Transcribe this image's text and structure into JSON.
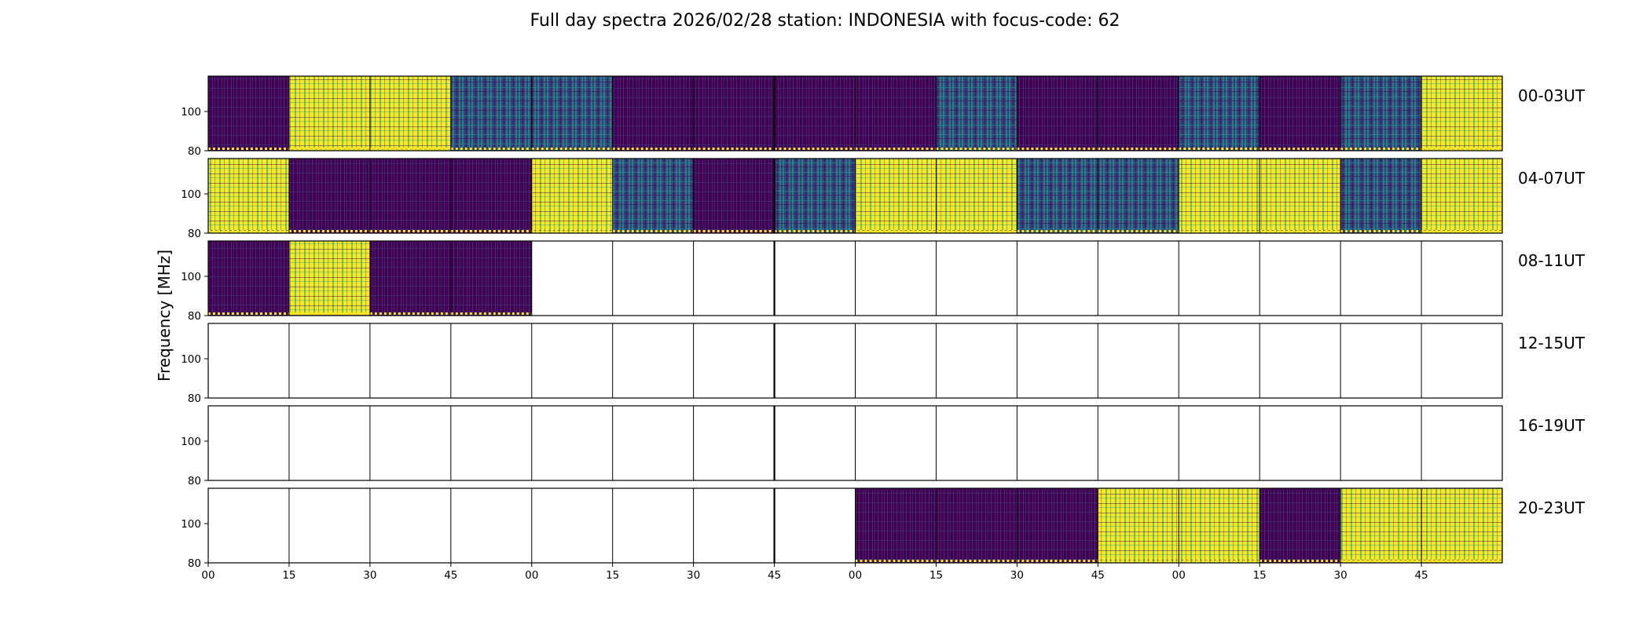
{
  "chart_data": {
    "type": "heatmap",
    "title": "Full day spectra 2026/02/28 station: INDONESIA with focus-code: 62",
    "ylabel": "Frequency [MHz]",
    "y_ticks": [
      "80",
      "100"
    ],
    "ylim": [
      80,
      118
    ],
    "x_tick_labels": [
      "00",
      "15",
      "30",
      "45",
      "00",
      "15",
      "30",
      "45",
      "00",
      "15",
      "30",
      "45",
      "00",
      "15",
      "30",
      "45"
    ],
    "colormap": "viridis",
    "colors": {
      "background": "#ffffff",
      "frame": "#000000",
      "low": "#440154",
      "mid": "#21918c",
      "high": "#fde725"
    },
    "rows": [
      {
        "label": "00-03UT",
        "blocks": [
          "low",
          "high",
          "high",
          "mid",
          "mid",
          "low",
          "low",
          "low",
          "low",
          "mid",
          "low",
          "low",
          "mid",
          "low",
          "mid",
          "high"
        ]
      },
      {
        "label": "04-07UT",
        "blocks": [
          "high",
          "low",
          "low",
          "low",
          "high",
          "mid",
          "low",
          "mid",
          "high",
          "high",
          "mid",
          "mid",
          "high",
          "high",
          "mid",
          "high"
        ]
      },
      {
        "label": "08-11UT",
        "blocks": [
          "low",
          "high",
          "low",
          "low",
          null,
          null,
          null,
          null,
          null,
          null,
          null,
          null,
          null,
          null,
          null,
          null
        ]
      },
      {
        "label": "12-15UT",
        "blocks": [
          null,
          null,
          null,
          null,
          null,
          null,
          null,
          null,
          null,
          null,
          null,
          null,
          null,
          null,
          null,
          null
        ]
      },
      {
        "label": "16-19UT",
        "blocks": [
          null,
          null,
          null,
          null,
          null,
          null,
          null,
          null,
          null,
          null,
          null,
          null,
          null,
          null,
          null,
          null
        ]
      },
      {
        "label": "20-23UT",
        "blocks": [
          null,
          null,
          null,
          null,
          null,
          null,
          null,
          null,
          "low",
          "low",
          "low",
          "high",
          "high",
          "low",
          "high",
          "high"
        ]
      }
    ]
  }
}
